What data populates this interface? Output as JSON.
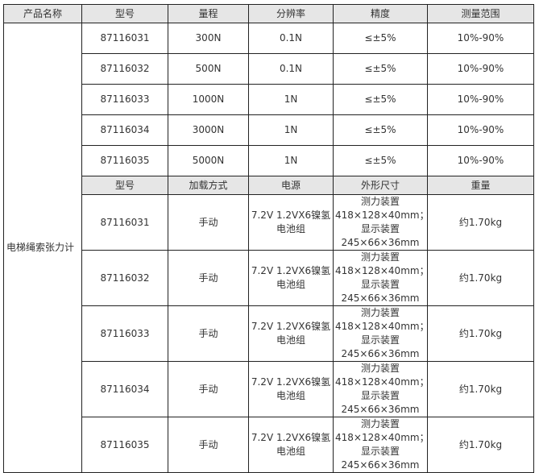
{
  "product_name": "电梯绳索张力计",
  "header1": [
    "产品名称",
    "型号",
    "量程",
    "分辨率",
    "精度",
    "测量范围"
  ],
  "rows1": [
    [
      "87116031",
      "300N",
      "0.1N",
      "≤±5%",
      "10%-90%"
    ],
    [
      "87116032",
      "500N",
      "0.1N",
      "≤±5%",
      "10%-90%"
    ],
    [
      "87116033",
      "1000N",
      "1N",
      "≤±5%",
      "10%-90%"
    ],
    [
      "87116034",
      "3000N",
      "1N",
      "≤±5%",
      "10%-90%"
    ],
    [
      "87116035",
      "5000N",
      "1N",
      "≤±5%",
      "10%-90%"
    ]
  ],
  "header2": [
    "型号",
    "加载方式",
    "电源",
    "外形尺寸",
    "重量"
  ],
  "rows2": [
    [
      "87116031",
      "手动",
      "7.2V 1.2VX6镍氢电池组",
      "测力装置418×128×40mm；显示装置245×66×36mm",
      "约1.70kg"
    ],
    [
      "87116032",
      "手动",
      "7.2V 1.2VX6镍氢电池组",
      "测力装置418×128×40mm；显示装置245×66×36mm",
      "约1.70kg"
    ],
    [
      "87116033",
      "手动",
      "7.2V 1.2VX6镍氢电池组",
      "测力装置418×128×40mm；显示装置245×66×36mm",
      "约1.70kg"
    ],
    [
      "87116034",
      "手动",
      "7.2V 1.2VX6镍氢电池组",
      "测力装置418×128×40mm；显示装置245×66×36mm",
      "约1.70kg"
    ],
    [
      "87116035",
      "手动",
      "7.2V 1.2VX6镍氢电池组",
      "测力装置418×128×40mm；显示装置245×66×36mm",
      "约1.70kg"
    ]
  ]
}
